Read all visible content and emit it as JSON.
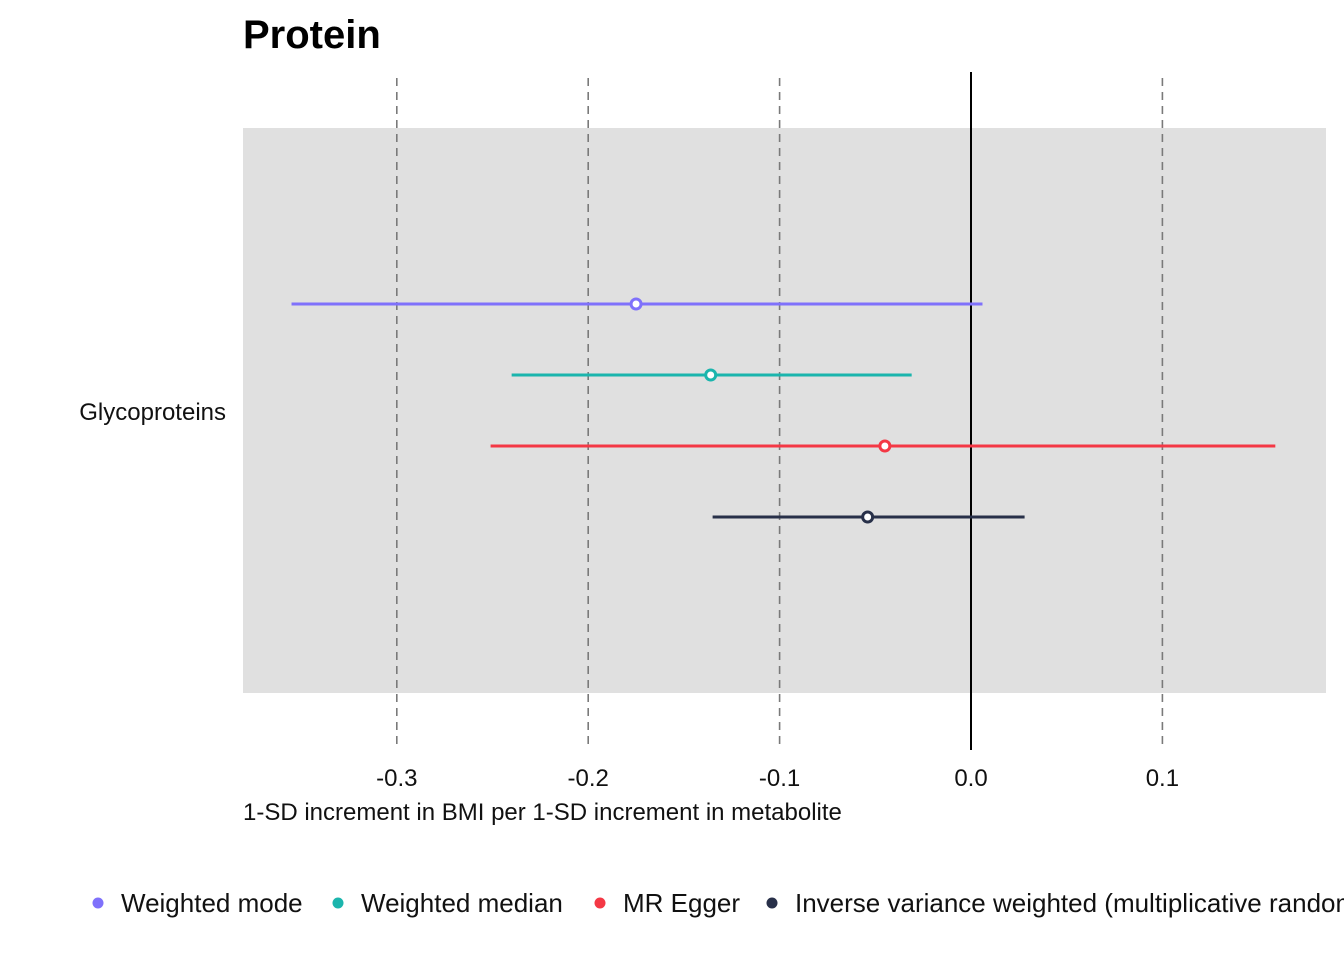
{
  "chart_data": {
    "type": "forest",
    "title": "Protein",
    "xlabel": "1-SD increment in BMI per 1-SD increment in metabolite",
    "ylabel": "",
    "xlim": [
      -0.38,
      0.185
    ],
    "x_ticks": [
      -0.3,
      -0.2,
      -0.1,
      0.0,
      0.1
    ],
    "x_tick_labels": [
      "-0.3",
      "-0.2",
      "-0.1",
      "0.0",
      "0.1"
    ],
    "reference_line": 0.0,
    "grid": "dashed vertical at ticks",
    "categories": [
      "Glycoproteins"
    ],
    "legend_position": "bottom",
    "series": [
      {
        "name": "Weighted mode",
        "color": "#7f71fb",
        "estimate": -0.175,
        "lower": -0.355,
        "upper": 0.006
      },
      {
        "name": "Weighted median",
        "color": "#1bb5ad",
        "estimate": -0.136,
        "lower": -0.24,
        "upper": -0.031
      },
      {
        "name": "MR Egger",
        "color": "#f43845",
        "estimate": -0.045,
        "lower": -0.251,
        "upper": 0.159
      },
      {
        "name": "Inverse variance weighted (multiplicative random effects)",
        "color": "#283049",
        "estimate": -0.054,
        "lower": -0.135,
        "upper": 0.028
      }
    ]
  }
}
